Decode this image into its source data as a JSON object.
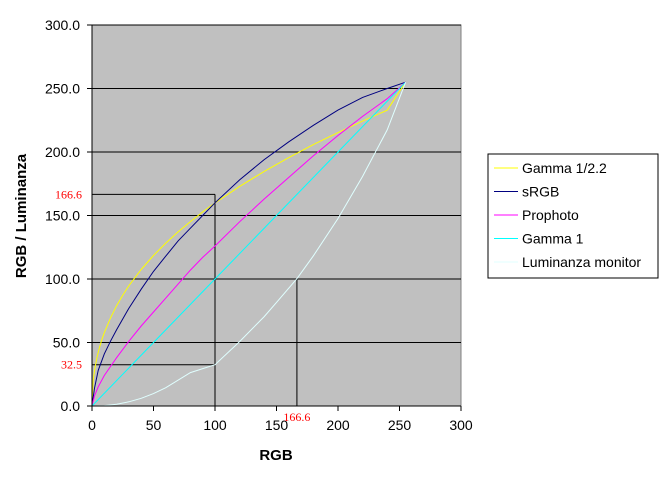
{
  "chart_data": {
    "type": "line",
    "title": "",
    "xlabel": "RGB",
    "ylabel": "RGB / Luminanza",
    "xlim": [
      0,
      300
    ],
    "ylim": [
      0,
      300
    ],
    "x_ticks": [
      "0",
      "50",
      "100",
      "150",
      "200",
      "250",
      "300"
    ],
    "y_ticks": [
      "0.0",
      "50.0",
      "100.0",
      "150.0",
      "200.0",
      "250.0",
      "300.0"
    ],
    "x_tick_values": [
      0,
      50,
      100,
      150,
      200,
      250,
      300
    ],
    "y_tick_values": [
      0,
      50,
      100,
      150,
      200,
      250,
      300
    ],
    "grid": "horizontal",
    "plot_background": "#c0c0c0",
    "legend_position": "right",
    "series": [
      {
        "name": "Gamma 1/2.2",
        "color": "#ffff00",
        "x": [
          0,
          1,
          2,
          4,
          6,
          8,
          10,
          15,
          20,
          25,
          30,
          40,
          50,
          60,
          70,
          80,
          90,
          100,
          120,
          140,
          160,
          180,
          200,
          220,
          240,
          255
        ],
        "y": [
          0,
          20.3,
          27.8,
          38.1,
          45.8,
          52.2,
          57.7,
          69.4,
          79.0,
          87.3,
          94.7,
          107.5,
          118.5,
          128.3,
          137.1,
          145.2,
          152.8,
          159.9,
          172.9,
          184.7,
          195.6,
          205.8,
          215.3,
          224.3,
          232.9,
          255
        ]
      },
      {
        "name": "sRGB",
        "color": "#000080",
        "x": [
          0,
          2,
          5,
          10,
          15,
          20,
          30,
          40,
          50,
          60,
          70,
          80,
          90,
          100,
          120,
          140,
          160,
          180,
          200,
          220,
          240,
          255
        ],
        "y": [
          0,
          14,
          28,
          41,
          51,
          60,
          77,
          92,
          106,
          118,
          130,
          140,
          150,
          160,
          178,
          194,
          208,
          221,
          233,
          243,
          250,
          255
        ]
      },
      {
        "name": "Prophoto",
        "color": "#ff00ff",
        "x": [
          0,
          2,
          5,
          10,
          20,
          30,
          40,
          50,
          60,
          70,
          80,
          90,
          100,
          120,
          140,
          160,
          180,
          200,
          220,
          240,
          255
        ],
        "y": [
          0,
          8,
          15,
          24,
          38,
          51,
          63,
          74,
          85,
          96,
          107,
          117,
          126,
          145,
          163,
          180,
          197,
          213,
          228,
          242,
          255
        ]
      },
      {
        "name": "Gamma 1",
        "color": "#00ffff",
        "x": [
          0,
          50,
          100,
          150,
          200,
          255
        ],
        "y": [
          0,
          50,
          100,
          150,
          200,
          255
        ]
      },
      {
        "name": "Luminanza monitor",
        "color": "#e0ffff",
        "x": [
          0,
          10,
          20,
          30,
          40,
          50,
          60,
          80,
          100,
          120,
          140,
          150,
          166.6,
          180,
          200,
          220,
          240,
          255
        ],
        "y": [
          0,
          0.3,
          1.4,
          3.3,
          6.1,
          9.8,
          14.4,
          26.3,
          32.5,
          50.7,
          70.4,
          81.6,
          100.2,
          118.3,
          147.6,
          180.8,
          217.4,
          255
        ]
      }
    ],
    "annotations": [
      {
        "text": "166.6",
        "axis": "y",
        "value": 166.6
      },
      {
        "text": "32.5",
        "axis": "y",
        "value": 32.5
      },
      {
        "text": "166.6",
        "axis": "x",
        "value": 166.6
      }
    ],
    "guide_lines": [
      {
        "from": [
          0,
          166.6
        ],
        "to": [
          100,
          166.6
        ]
      },
      {
        "from": [
          100,
          166.6
        ],
        "to": [
          100,
          0
        ]
      },
      {
        "from": [
          0,
          32.5
        ],
        "to": [
          100,
          32.5
        ]
      },
      {
        "from": [
          166.6,
          100
        ],
        "to": [
          166.6,
          0
        ]
      }
    ]
  }
}
